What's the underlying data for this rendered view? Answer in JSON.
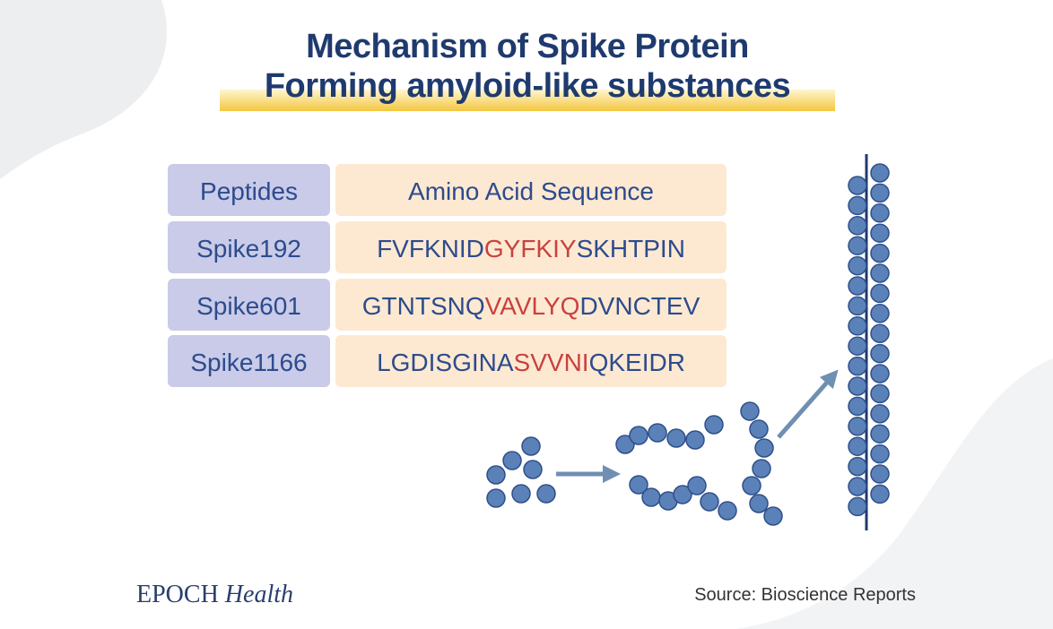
{
  "title": {
    "line1": "Mechanism of Spike Protein",
    "line2": "Forming amyloid-like substances"
  },
  "table": {
    "header": [
      "Peptides",
      "Amino Acid Sequence"
    ],
    "rows": [
      {
        "peptide": "Spike192",
        "sequence": [
          "FVFKNID",
          "GYFKIY",
          "SKHTPIN"
        ]
      },
      {
        "peptide": "Spike601",
        "sequence": [
          "GTNTSNQ",
          "VAVLYQ",
          "DVNCTEV"
        ]
      },
      {
        "peptide": "Spike1166",
        "sequence": [
          "LGDISGINA",
          "SVVNI",
          "QKEIDR"
        ]
      }
    ]
  },
  "footer": {
    "brand": "EPOCH",
    "brand_suffix": "Health",
    "source": "Source: Bioscience Reports"
  }
}
